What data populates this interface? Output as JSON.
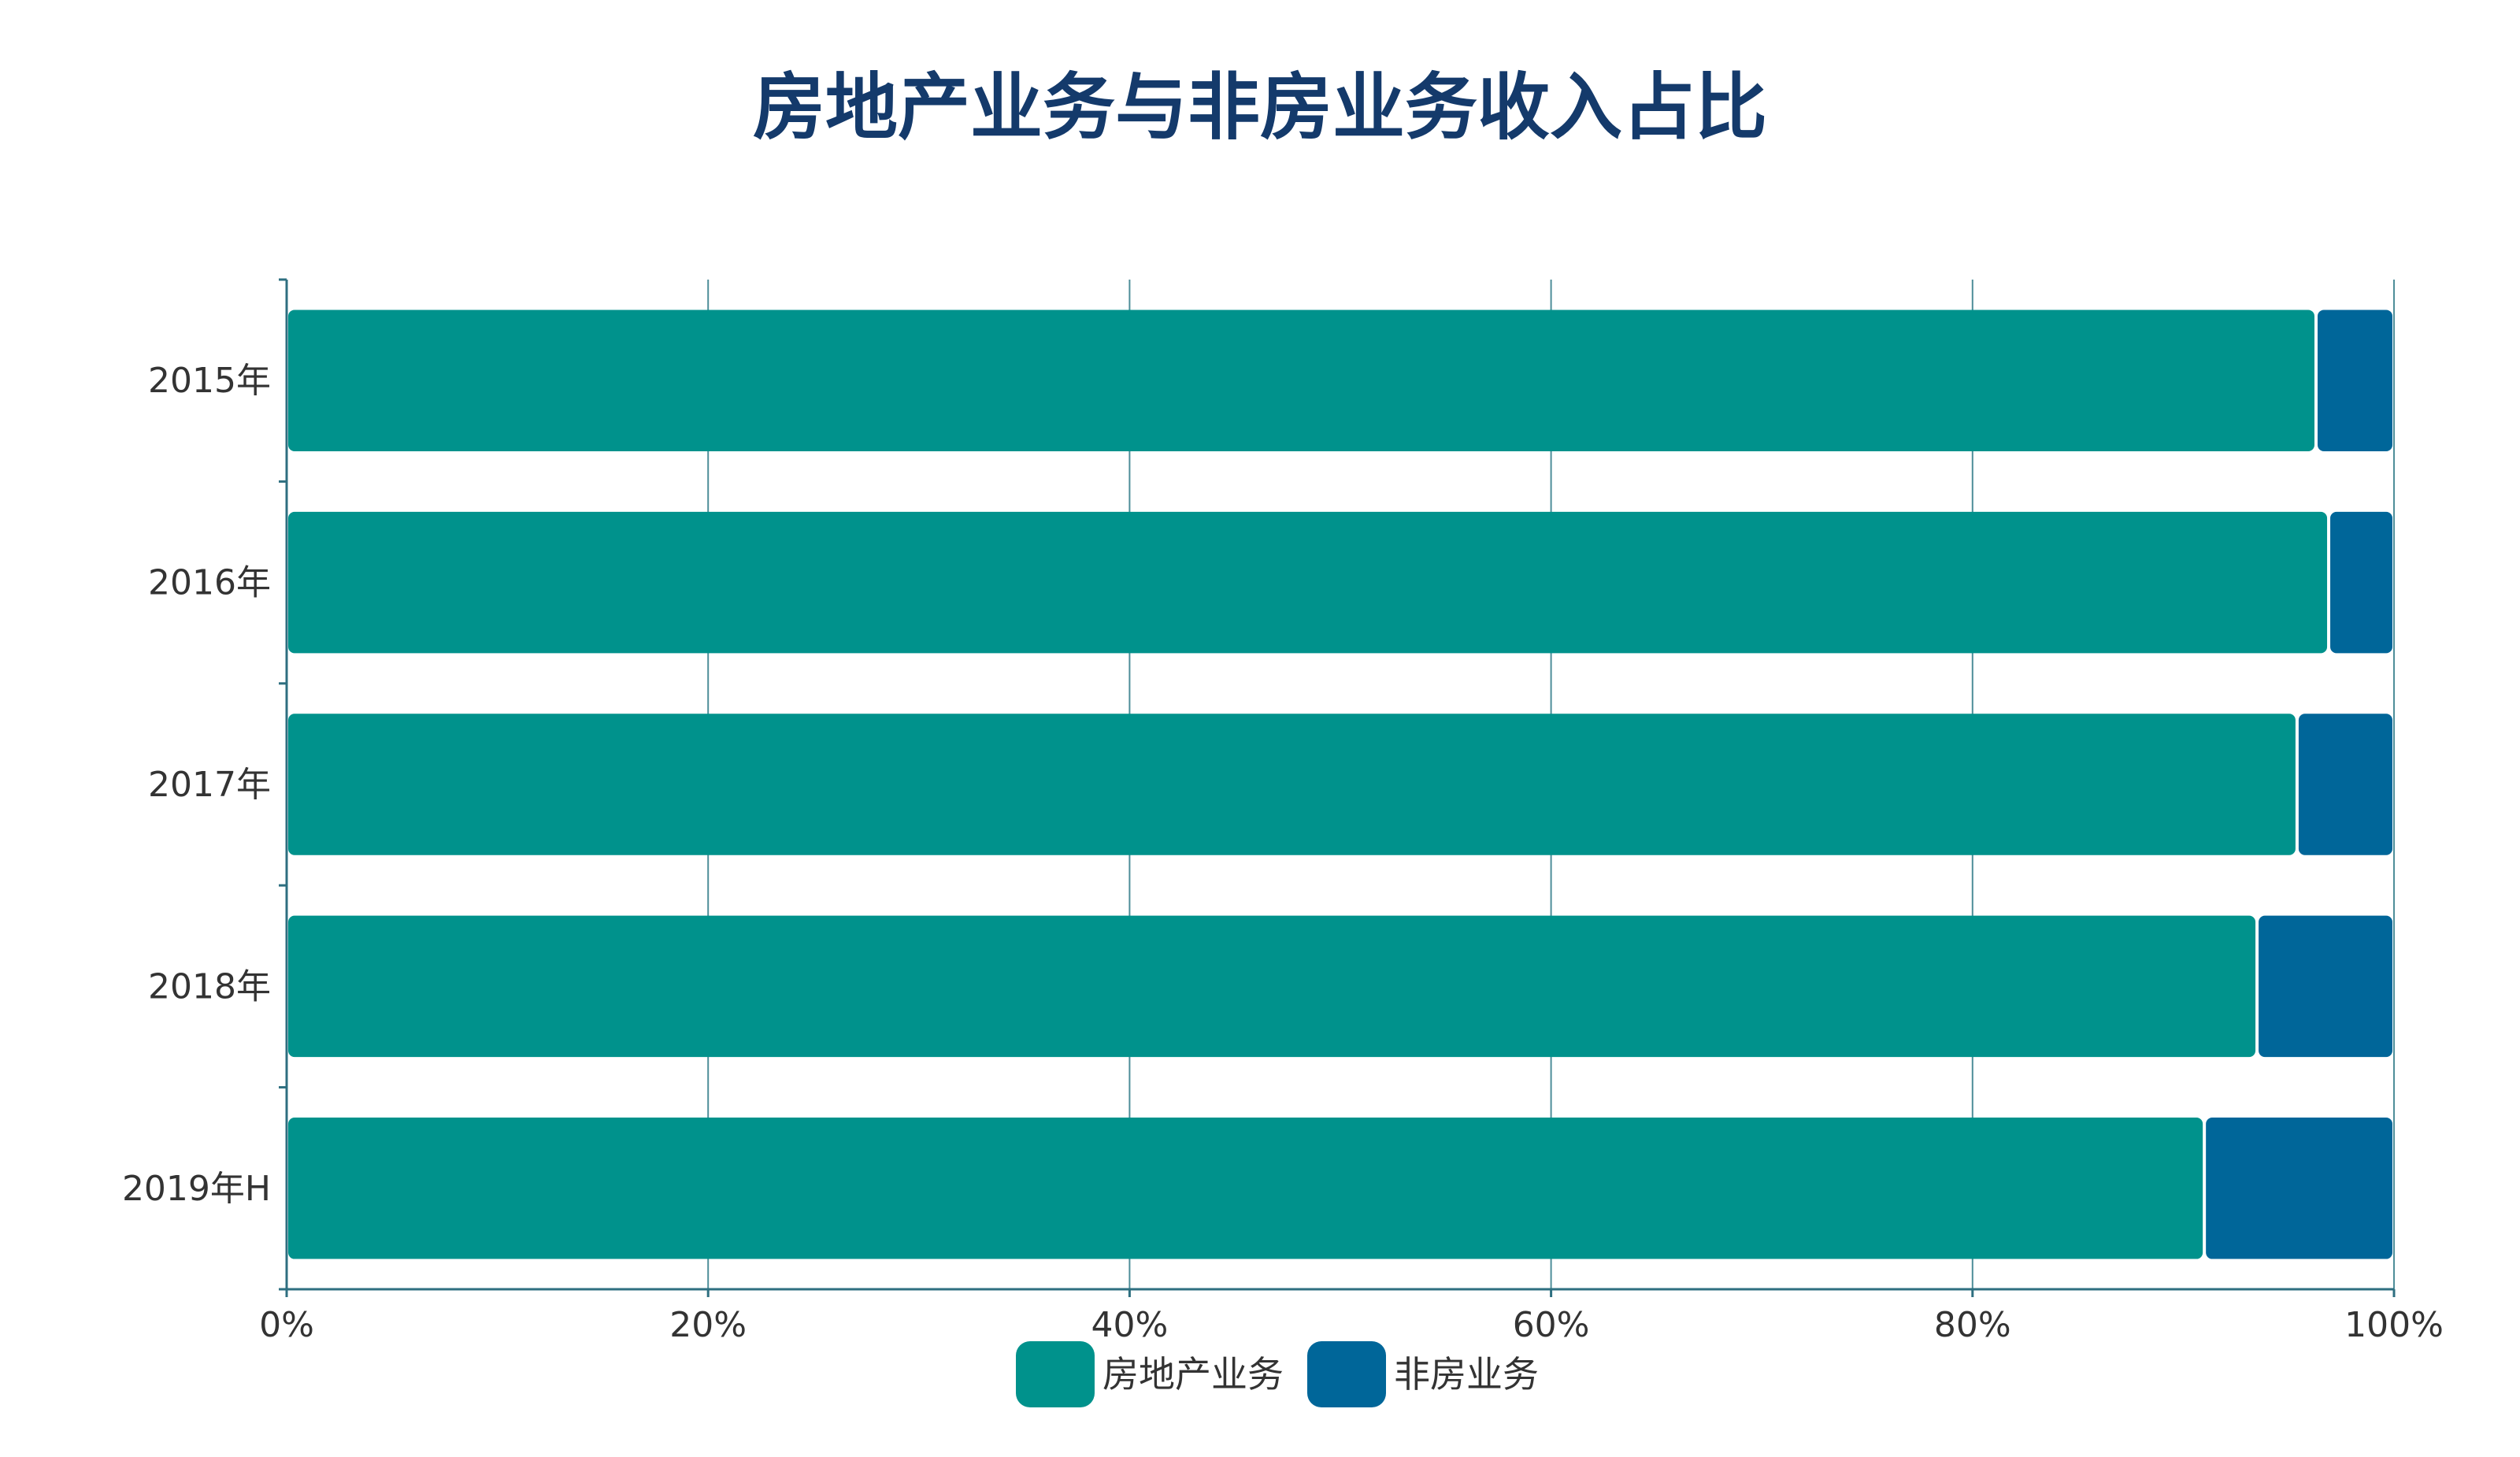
{
  "chart_data": {
    "type": "bar",
    "orientation": "horizontal",
    "stacked": "percent",
    "title": "房地产业务与非房业务收入占比",
    "categories": [
      "2015年",
      "2016年",
      "2017年",
      "2018年",
      "2019年H"
    ],
    "series": [
      {
        "name": "房地产业务",
        "values": [
          96.3,
          96.9,
          95.4,
          93.5,
          91.0
        ],
        "color": "#00928c"
      },
      {
        "name": "非房业务",
        "values": [
          3.7,
          3.1,
          4.6,
          6.5,
          9.0
        ],
        "color": "#006699"
      }
    ],
    "xlim": [
      0,
      100
    ],
    "x_tick_labels": [
      "0%",
      "20%",
      "40%",
      "60%",
      "80%",
      "100%"
    ],
    "grid": "vertical",
    "legend": "bottom-center",
    "axis_color": "#2e6f80"
  }
}
